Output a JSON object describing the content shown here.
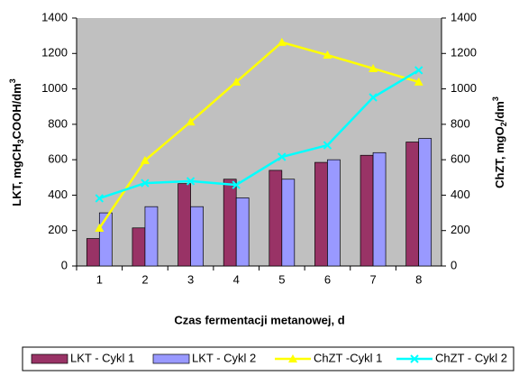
{
  "chart_data": {
    "type": "bar_line",
    "x_label": "Czas fermentacji metanowej, d",
    "y_label": [
      "LKT, mgCH",
      "3",
      "COOH/dm",
      "3"
    ],
    "y2_label": [
      "ChZT, mgO",
      "2",
      "/dm",
      "3"
    ],
    "categories": [
      "1",
      "2",
      "3",
      "4",
      "5",
      "6",
      "7",
      "8"
    ],
    "ylim": [
      0,
      1400
    ],
    "yticks": [
      0,
      200,
      400,
      600,
      800,
      1000,
      1200,
      1400
    ],
    "y2lim": [
      0,
      1400
    ],
    "y2ticks": [
      0,
      200,
      400,
      600,
      800,
      1000,
      1200,
      1400
    ],
    "series": [
      {
        "name": "LKT - Cykl 1",
        "kind": "bar",
        "color": "#993366",
        "values": [
          155,
          215,
          465,
          490,
          540,
          585,
          625,
          700
        ]
      },
      {
        "name": "LKT - Cykl 2",
        "kind": "bar",
        "color": "#9999ff",
        "values": [
          300,
          335,
          335,
          385,
          490,
          600,
          640,
          720
        ]
      },
      {
        "name": "ChZT -Cykl 1",
        "kind": "line",
        "axis": "y2",
        "marker": "triangle",
        "color": "#ffff00",
        "values": [
          214,
          596,
          814,
          1039,
          1263,
          1191,
          1115,
          1039
        ]
      },
      {
        "name": "ChZT - Cykl 2",
        "kind": "line",
        "axis": "y2",
        "marker": "x",
        "color": "#00ffff",
        "values": [
          382,
          468,
          479,
          458,
          616,
          682,
          952,
          1105
        ]
      }
    ],
    "legend": "bottom"
  }
}
